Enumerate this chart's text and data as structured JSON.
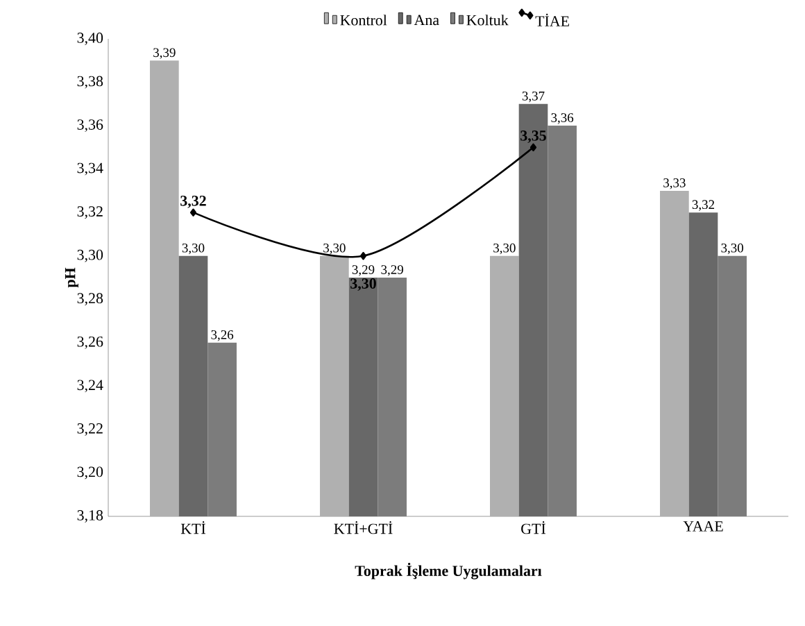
{
  "chart_data": {
    "type": "bar",
    "xlabel": "Toprak İşleme Uygulamaları",
    "ylabel": "pH",
    "categories": [
      "KTİ",
      "KTİ+GTİ",
      "GTİ",
      "YAAE"
    ],
    "series": [
      {
        "name": "Kontrol",
        "color": "#b0b0b0",
        "values": [
          3.39,
          3.3,
          3.3,
          3.33
        ],
        "value_labels": [
          "3,39",
          "3,30",
          "3,30",
          "3,33"
        ]
      },
      {
        "name": "Ana",
        "color": "#686868",
        "values": [
          3.3,
          3.29,
          3.37,
          3.32
        ],
        "value_labels": [
          "3,30",
          "3,29",
          "3,37",
          "3,32"
        ]
      },
      {
        "name": "Koltuk",
        "color": "#7c7c7c",
        "values": [
          3.26,
          3.29,
          3.36,
          3.3
        ],
        "value_labels": [
          "3,26",
          "3,29",
          "3,36",
          "3,30"
        ]
      },
      {
        "name": "TİAE",
        "type": "line",
        "color": "#000000",
        "marker": "diamond",
        "values": [
          3.32,
          3.3,
          3.35,
          null
        ],
        "value_labels": [
          "3,32",
          "3,30",
          "3,35",
          null
        ]
      }
    ],
    "ylim": [
      3.18,
      3.4
    ],
    "yticks": [
      {
        "value": 3.18,
        "label": "3,18"
      },
      {
        "value": 3.2,
        "label": "3,20"
      },
      {
        "value": 3.22,
        "label": "3,22"
      },
      {
        "value": 3.24,
        "label": "3,24"
      },
      {
        "value": 3.26,
        "label": "3,26"
      },
      {
        "value": 3.28,
        "label": "3,28"
      },
      {
        "value": 3.3,
        "label": "3,30"
      },
      {
        "value": 3.32,
        "label": "3,32"
      },
      {
        "value": 3.34,
        "label": "3,34"
      },
      {
        "value": 3.36,
        "label": "3,36"
      },
      {
        "value": 3.38,
        "label": "3,38"
      },
      {
        "value": 3.4,
        "label": "3,40"
      }
    ],
    "legend": "top",
    "grid": false
  }
}
